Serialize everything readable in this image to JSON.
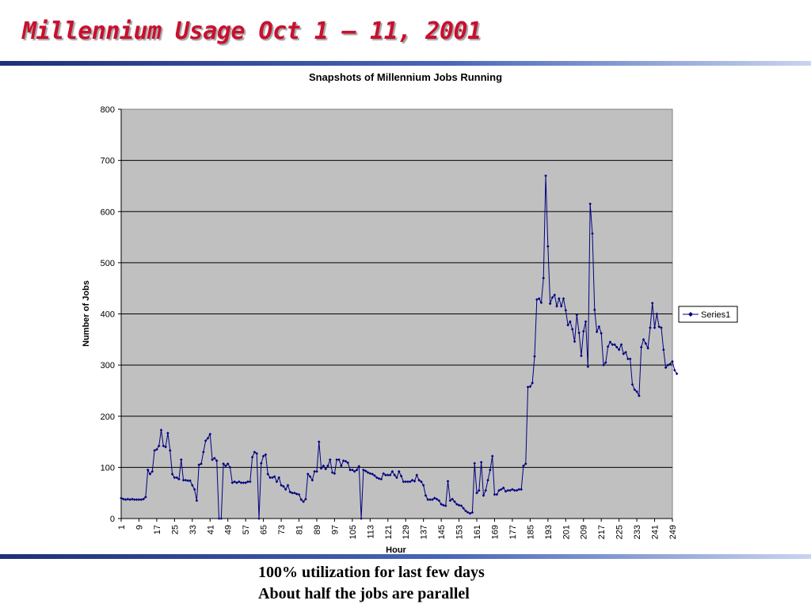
{
  "slide": {
    "title": "Millennium Usage Oct 1 – 11, 2001",
    "bullets": [
      "100% utilization for last few days",
      "About half the jobs are parallel"
    ]
  },
  "colors": {
    "title": "#c8102e",
    "plot_background": "#c0c0c0",
    "series": "#000080",
    "rule": "#3f5db0"
  },
  "chart_data": {
    "type": "line",
    "title": "Snapshots of Millennium Jobs Running",
    "xlabel": "Hour",
    "ylabel": "Number of Jobs",
    "ylim": [
      0,
      800
    ],
    "yticks": [
      0,
      100,
      200,
      300,
      400,
      500,
      600,
      700,
      800
    ],
    "xlim": [
      1,
      249
    ],
    "xticks": [
      1,
      9,
      17,
      25,
      33,
      41,
      49,
      57,
      65,
      73,
      81,
      89,
      97,
      105,
      113,
      121,
      129,
      137,
      145,
      153,
      161,
      169,
      177,
      185,
      193,
      201,
      209,
      217,
      225,
      233,
      241,
      249
    ],
    "grid": "horizontal",
    "legend": "right",
    "series": [
      {
        "name": "Series1",
        "x_start": 1,
        "x_step": 1,
        "values": [
          40,
          38,
          37,
          38,
          37,
          38,
          37,
          37,
          37,
          37,
          38,
          42,
          95,
          87,
          92,
          133,
          135,
          142,
          173,
          142,
          140,
          167,
          133,
          87,
          80,
          80,
          77,
          115,
          75,
          75,
          74,
          74,
          65,
          57,
          35,
          105,
          107,
          130,
          152,
          157,
          165,
          115,
          118,
          113,
          0,
          0,
          107,
          103,
          107,
          100,
          70,
          72,
          70,
          72,
          70,
          70,
          70,
          72,
          72,
          120,
          130,
          127,
          0,
          108,
          122,
          125,
          87,
          80,
          80,
          82,
          72,
          80,
          65,
          63,
          57,
          65,
          52,
          50,
          50,
          48,
          47,
          37,
          33,
          38,
          87,
          82,
          75,
          92,
          92,
          150,
          98,
          103,
          97,
          103,
          115,
          90,
          88,
          115,
          115,
          103,
          113,
          112,
          109,
          95,
          95,
          92,
          95,
          102,
          0,
          95,
          93,
          90,
          88,
          87,
          84,
          80,
          78,
          77,
          88,
          85,
          85,
          85,
          92,
          85,
          80,
          92,
          83,
          72,
          72,
          72,
          72,
          75,
          73,
          85,
          75,
          72,
          65,
          45,
          37,
          37,
          37,
          40,
          38,
          35,
          28,
          26,
          25,
          73,
          35,
          38,
          33,
          28,
          26,
          25,
          20,
          15,
          12,
          10,
          12,
          108,
          50,
          55,
          110,
          45,
          55,
          75,
          95,
          122,
          47,
          47,
          55,
          57,
          60,
          53,
          55,
          55,
          57,
          55,
          55,
          57,
          57,
          103,
          107,
          257,
          258,
          265,
          317,
          428,
          430,
          422,
          470,
          670,
          532,
          420,
          432,
          437,
          415,
          430,
          415,
          430,
          407,
          378,
          385,
          370,
          346,
          398,
          363,
          318,
          366,
          385,
          297,
          615,
          557,
          408,
          365,
          375,
          362,
          300,
          305,
          336,
          345,
          340,
          340,
          335,
          330,
          340,
          322,
          325,
          312,
          312,
          262,
          252,
          248,
          240,
          335,
          350,
          342,
          333,
          373,
          421,
          373,
          400,
          375,
          373,
          330,
          295,
          300,
          302,
          307,
          290,
          283
        ]
      }
    ]
  }
}
